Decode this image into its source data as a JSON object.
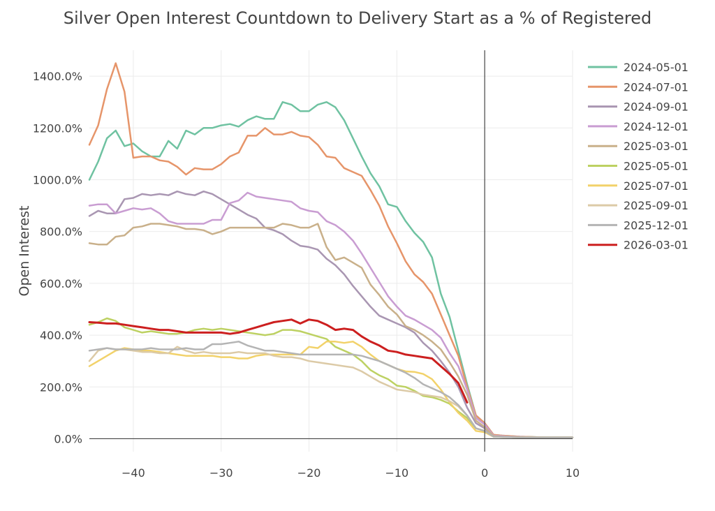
{
  "chart_data": {
    "type": "line",
    "title": "Silver Open Interest Countdown to Delivery Start as a % of Registered",
    "xlabel": "",
    "ylabel": "Open Interest",
    "xlim": [
      -45,
      10
    ],
    "ylim": [
      -50,
      1500
    ],
    "x_ticks": [
      -40,
      -30,
      -20,
      -10,
      0,
      10
    ],
    "x_tick_labels": [
      "−40",
      "−30",
      "−20",
      "−10",
      "0",
      "10"
    ],
    "y_ticks": [
      0,
      200,
      400,
      600,
      800,
      1000,
      1200,
      1400
    ],
    "y_tick_labels": [
      "0.0%",
      "200.0%",
      "400.0%",
      "600.0%",
      "800.0%",
      "1000.0%",
      "1200.0%",
      "1400.0%"
    ],
    "grid": true,
    "legend_position": "right",
    "series": [
      {
        "name": "2024-05-01",
        "color": "#6fc2a1",
        "x": [
          -45,
          -44,
          -43,
          -42,
          -41,
          -40,
          -39,
          -38,
          -37,
          -36,
          -35,
          -34,
          -33,
          -32,
          -31,
          -30,
          -29,
          -28,
          -27,
          -26,
          -25,
          -24,
          -23,
          -22,
          -21,
          -20,
          -19,
          -18,
          -17,
          -16,
          -15,
          -14,
          -13,
          -12,
          -11,
          -10,
          -9,
          -8,
          -7,
          -6,
          -5,
          -4,
          -3,
          -2,
          -1,
          0,
          1,
          2,
          3,
          4,
          5,
          6,
          7,
          8,
          9,
          10
        ],
        "y": [
          1000,
          1070,
          1160,
          1190,
          1130,
          1140,
          1110,
          1090,
          1090,
          1150,
          1120,
          1190,
          1175,
          1200,
          1200,
          1210,
          1215,
          1205,
          1230,
          1245,
          1235,
          1235,
          1300,
          1290,
          1265,
          1265,
          1290,
          1300,
          1280,
          1230,
          1160,
          1090,
          1025,
          975,
          905,
          895,
          840,
          795,
          760,
          700,
          560,
          470,
          340,
          210,
          90,
          60,
          15,
          12,
          10,
          8,
          7,
          6,
          5,
          5,
          5,
          5
        ]
      },
      {
        "name": "2024-07-01",
        "color": "#e6956a",
        "x": [
          -45,
          -44,
          -43,
          -42,
          -41,
          -40,
          -39,
          -38,
          -37,
          -36,
          -35,
          -34,
          -33,
          -32,
          -31,
          -30,
          -29,
          -28,
          -27,
          -26,
          -25,
          -24,
          -23,
          -22,
          -21,
          -20,
          -19,
          -18,
          -17,
          -16,
          -15,
          -14,
          -13,
          -12,
          -11,
          -10,
          -9,
          -8,
          -7,
          -6,
          -5,
          -4,
          -3,
          -2,
          -1,
          0,
          1,
          2,
          3,
          4,
          5,
          6,
          7,
          8,
          9,
          10
        ],
        "y": [
          1135,
          1210,
          1350,
          1450,
          1340,
          1085,
          1090,
          1090,
          1075,
          1070,
          1050,
          1020,
          1045,
          1040,
          1040,
          1060,
          1090,
          1105,
          1170,
          1170,
          1200,
          1175,
          1175,
          1185,
          1170,
          1165,
          1135,
          1090,
          1085,
          1045,
          1030,
          1015,
          960,
          900,
          820,
          755,
          685,
          635,
          605,
          560,
          480,
          400,
          320,
          200,
          90,
          60,
          15,
          12,
          10,
          8,
          7,
          6,
          5,
          5,
          5,
          5
        ]
      },
      {
        "name": "2024-09-01",
        "color": "#a996b2",
        "x": [
          -45,
          -44,
          -43,
          -42,
          -41,
          -40,
          -39,
          -38,
          -37,
          -36,
          -35,
          -34,
          -33,
          -32,
          -31,
          -30,
          -29,
          -28,
          -27,
          -26,
          -25,
          -24,
          -23,
          -22,
          -21,
          -20,
          -19,
          -18,
          -17,
          -16,
          -15,
          -14,
          -13,
          -12,
          -11,
          -10,
          -9,
          -8,
          -7,
          -6,
          -5,
          -4,
          -3,
          -2,
          -1,
          0,
          1,
          2,
          3,
          4,
          5,
          6,
          7,
          8,
          9,
          10
        ],
        "y": [
          860,
          880,
          870,
          870,
          925,
          930,
          945,
          940,
          945,
          940,
          955,
          945,
          940,
          955,
          945,
          925,
          905,
          885,
          865,
          850,
          815,
          805,
          790,
          765,
          745,
          740,
          730,
          695,
          670,
          635,
          590,
          550,
          510,
          475,
          460,
          445,
          430,
          410,
          370,
          340,
          300,
          255,
          200,
          120,
          60,
          40,
          10,
          8,
          7,
          6,
          5,
          5,
          5,
          5,
          5,
          5
        ]
      },
      {
        "name": "2024-12-01",
        "color": "#c99dd2",
        "x": [
          -45,
          -44,
          -43,
          -42,
          -41,
          -40,
          -39,
          -38,
          -37,
          -36,
          -35,
          -34,
          -33,
          -32,
          -31,
          -30,
          -29,
          -28,
          -27,
          -26,
          -25,
          -24,
          -23,
          -22,
          -21,
          -20,
          -19,
          -18,
          -17,
          -16,
          -15,
          -14,
          -13,
          -12,
          -11,
          -10,
          -9,
          -8,
          -7,
          -6,
          -5,
          -4,
          -3,
          -2,
          -1,
          0,
          1,
          2,
          3,
          4,
          5,
          6,
          7,
          8,
          9,
          10
        ],
        "y": [
          900,
          905,
          905,
          870,
          880,
          890,
          885,
          890,
          870,
          840,
          830,
          830,
          830,
          830,
          845,
          845,
          910,
          920,
          950,
          935,
          930,
          925,
          920,
          915,
          890,
          880,
          875,
          840,
          825,
          800,
          765,
          715,
          660,
          605,
          550,
          510,
          475,
          460,
          440,
          420,
          390,
          330,
          280,
          190,
          80,
          55,
          12,
          10,
          8,
          7,
          6,
          5,
          5,
          5,
          5,
          5
        ]
      },
      {
        "name": "2025-03-01",
        "color": "#c9b08a",
        "x": [
          -45,
          -44,
          -43,
          -42,
          -41,
          -40,
          -39,
          -38,
          -37,
          -36,
          -35,
          -34,
          -33,
          -32,
          -31,
          -30,
          -29,
          -28,
          -27,
          -26,
          -25,
          -24,
          -23,
          -22,
          -21,
          -20,
          -19,
          -18,
          -17,
          -16,
          -15,
          -14,
          -13,
          -12,
          -11,
          -10,
          -9,
          -8,
          -7,
          -6,
          -5,
          -4,
          -3,
          -2,
          -1,
          0,
          1,
          2,
          3,
          4,
          5,
          6,
          7,
          8,
          9,
          10
        ],
        "y": [
          755,
          750,
          750,
          780,
          785,
          815,
          820,
          830,
          830,
          825,
          820,
          810,
          810,
          805,
          790,
          800,
          815,
          815,
          815,
          815,
          815,
          815,
          830,
          825,
          815,
          815,
          830,
          740,
          690,
          700,
          680,
          660,
          595,
          555,
          510,
          480,
          435,
          420,
          400,
          375,
          345,
          295,
          240,
          170,
          70,
          45,
          10,
          8,
          7,
          6,
          5,
          5,
          5,
          5,
          5,
          5
        ]
      },
      {
        "name": "2025-05-01",
        "color": "#bdd162",
        "x": [
          -45,
          -44,
          -43,
          -42,
          -41,
          -40,
          -39,
          -38,
          -37,
          -36,
          -35,
          -34,
          -33,
          -32,
          -31,
          -30,
          -29,
          -28,
          -27,
          -26,
          -25,
          -24,
          -23,
          -22,
          -21,
          -20,
          -19,
          -18,
          -17,
          -16,
          -15,
          -14,
          -13,
          -12,
          -11,
          -10,
          -9,
          -8,
          -7,
          -6,
          -5,
          -4,
          -3,
          -2,
          -1,
          0,
          1,
          2,
          3,
          4,
          5,
          6,
          7,
          8,
          9,
          10
        ],
        "y": [
          440,
          450,
          465,
          455,
          430,
          420,
          410,
          415,
          410,
          405,
          405,
          410,
          420,
          425,
          420,
          425,
          420,
          415,
          410,
          405,
          400,
          405,
          420,
          420,
          415,
          405,
          395,
          385,
          355,
          340,
          325,
          300,
          265,
          245,
          230,
          205,
          200,
          185,
          165,
          160,
          150,
          135,
          105,
          80,
          40,
          30,
          8,
          7,
          6,
          5,
          5,
          5,
          5,
          5,
          5,
          5
        ]
      },
      {
        "name": "2025-07-01",
        "color": "#f2d26a",
        "x": [
          -45,
          -44,
          -43,
          -42,
          -41,
          -40,
          -39,
          -38,
          -37,
          -36,
          -35,
          -34,
          -33,
          -32,
          -31,
          -30,
          -29,
          -28,
          -27,
          -26,
          -25,
          -24,
          -23,
          -22,
          -21,
          -20,
          -19,
          -18,
          -17,
          -16,
          -15,
          -14,
          -13,
          -12,
          -11,
          -10,
          -9,
          -8,
          -7,
          -6,
          -5,
          -4,
          -3,
          -2,
          -1,
          0,
          1,
          2,
          3,
          4,
          5,
          6,
          7,
          8,
          9,
          10
        ],
        "y": [
          280,
          300,
          320,
          340,
          350,
          345,
          340,
          340,
          335,
          330,
          325,
          320,
          320,
          320,
          320,
          315,
          315,
          310,
          310,
          320,
          325,
          325,
          325,
          325,
          325,
          355,
          350,
          375,
          375,
          370,
          375,
          355,
          325,
          300,
          285,
          270,
          260,
          258,
          250,
          230,
          190,
          140,
          100,
          70,
          30,
          25,
          8,
          7,
          6,
          5,
          5,
          5,
          5,
          5,
          5,
          5
        ]
      },
      {
        "name": "2025-09-01",
        "color": "#dccaa6",
        "x": [
          -45,
          -44,
          -43,
          -42,
          -41,
          -40,
          -39,
          -38,
          -37,
          -36,
          -35,
          -34,
          -33,
          -32,
          -31,
          -30,
          -29,
          -28,
          -27,
          -26,
          -25,
          -24,
          -23,
          -22,
          -21,
          -20,
          -19,
          -18,
          -17,
          -16,
          -15,
          -14,
          -13,
          -12,
          -11,
          -10,
          -9,
          -8,
          -7,
          -6,
          -5,
          -4,
          -3,
          -2,
          -1,
          0,
          1,
          2,
          3,
          4,
          5,
          6,
          7,
          8,
          9,
          10
        ],
        "y": [
          300,
          340,
          350,
          345,
          345,
          340,
          335,
          335,
          330,
          330,
          355,
          340,
          330,
          335,
          330,
          330,
          330,
          335,
          330,
          330,
          330,
          320,
          315,
          315,
          310,
          300,
          295,
          290,
          285,
          280,
          275,
          260,
          240,
          220,
          205,
          190,
          185,
          180,
          170,
          165,
          160,
          145,
          125,
          90,
          40,
          30,
          8,
          7,
          6,
          5,
          5,
          5,
          5,
          5,
          5,
          5
        ]
      },
      {
        "name": "2025-12-01",
        "color": "#b4b4b4",
        "x": [
          -45,
          -44,
          -43,
          -42,
          -41,
          -40,
          -39,
          -38,
          -37,
          -36,
          -35,
          -34,
          -33,
          -32,
          -31,
          -30,
          -29,
          -28,
          -27,
          -26,
          -25,
          -24,
          -23,
          -22,
          -21,
          -20,
          -19,
          -18,
          -17,
          -16,
          -15,
          -14,
          -13,
          -12,
          -11,
          -10,
          -9,
          -8,
          -7,
          -6,
          -5,
          -4,
          -3,
          -2,
          -1,
          0,
          1,
          2,
          3,
          4,
          5,
          6,
          7,
          8,
          9,
          10
        ],
        "y": [
          340,
          345,
          350,
          345,
          345,
          345,
          345,
          350,
          345,
          345,
          345,
          350,
          345,
          345,
          365,
          365,
          370,
          375,
          360,
          350,
          340,
          340,
          335,
          330,
          325,
          325,
          325,
          325,
          325,
          325,
          325,
          320,
          310,
          300,
          285,
          270,
          255,
          235,
          210,
          195,
          180,
          160,
          130,
          90,
          40,
          30,
          8,
          7,
          6,
          5,
          5,
          5,
          5,
          5,
          5,
          5
        ]
      },
      {
        "name": "2026-03-01",
        "color": "#cc1f1f",
        "x": [
          -45,
          -44,
          -43,
          -42,
          -41,
          -40,
          -39,
          -38,
          -37,
          -36,
          -35,
          -34,
          -33,
          -32,
          -31,
          -30,
          -29,
          -28,
          -27,
          -26,
          -25,
          -24,
          -23,
          -22,
          -21,
          -20,
          -19,
          -18,
          -17,
          -16,
          -15,
          -14,
          -13,
          -12,
          -11,
          -10,
          -9,
          -8,
          -7,
          -6,
          -5,
          -4,
          -3,
          -2
        ],
        "y": [
          450,
          448,
          445,
          445,
          440,
          435,
          430,
          425,
          420,
          420,
          415,
          410,
          410,
          410,
          410,
          410,
          405,
          410,
          420,
          430,
          440,
          450,
          455,
          460,
          445,
          460,
          455,
          440,
          420,
          425,
          420,
          395,
          375,
          360,
          340,
          335,
          325,
          320,
          315,
          310,
          280,
          250,
          215,
          140
        ]
      }
    ]
  }
}
